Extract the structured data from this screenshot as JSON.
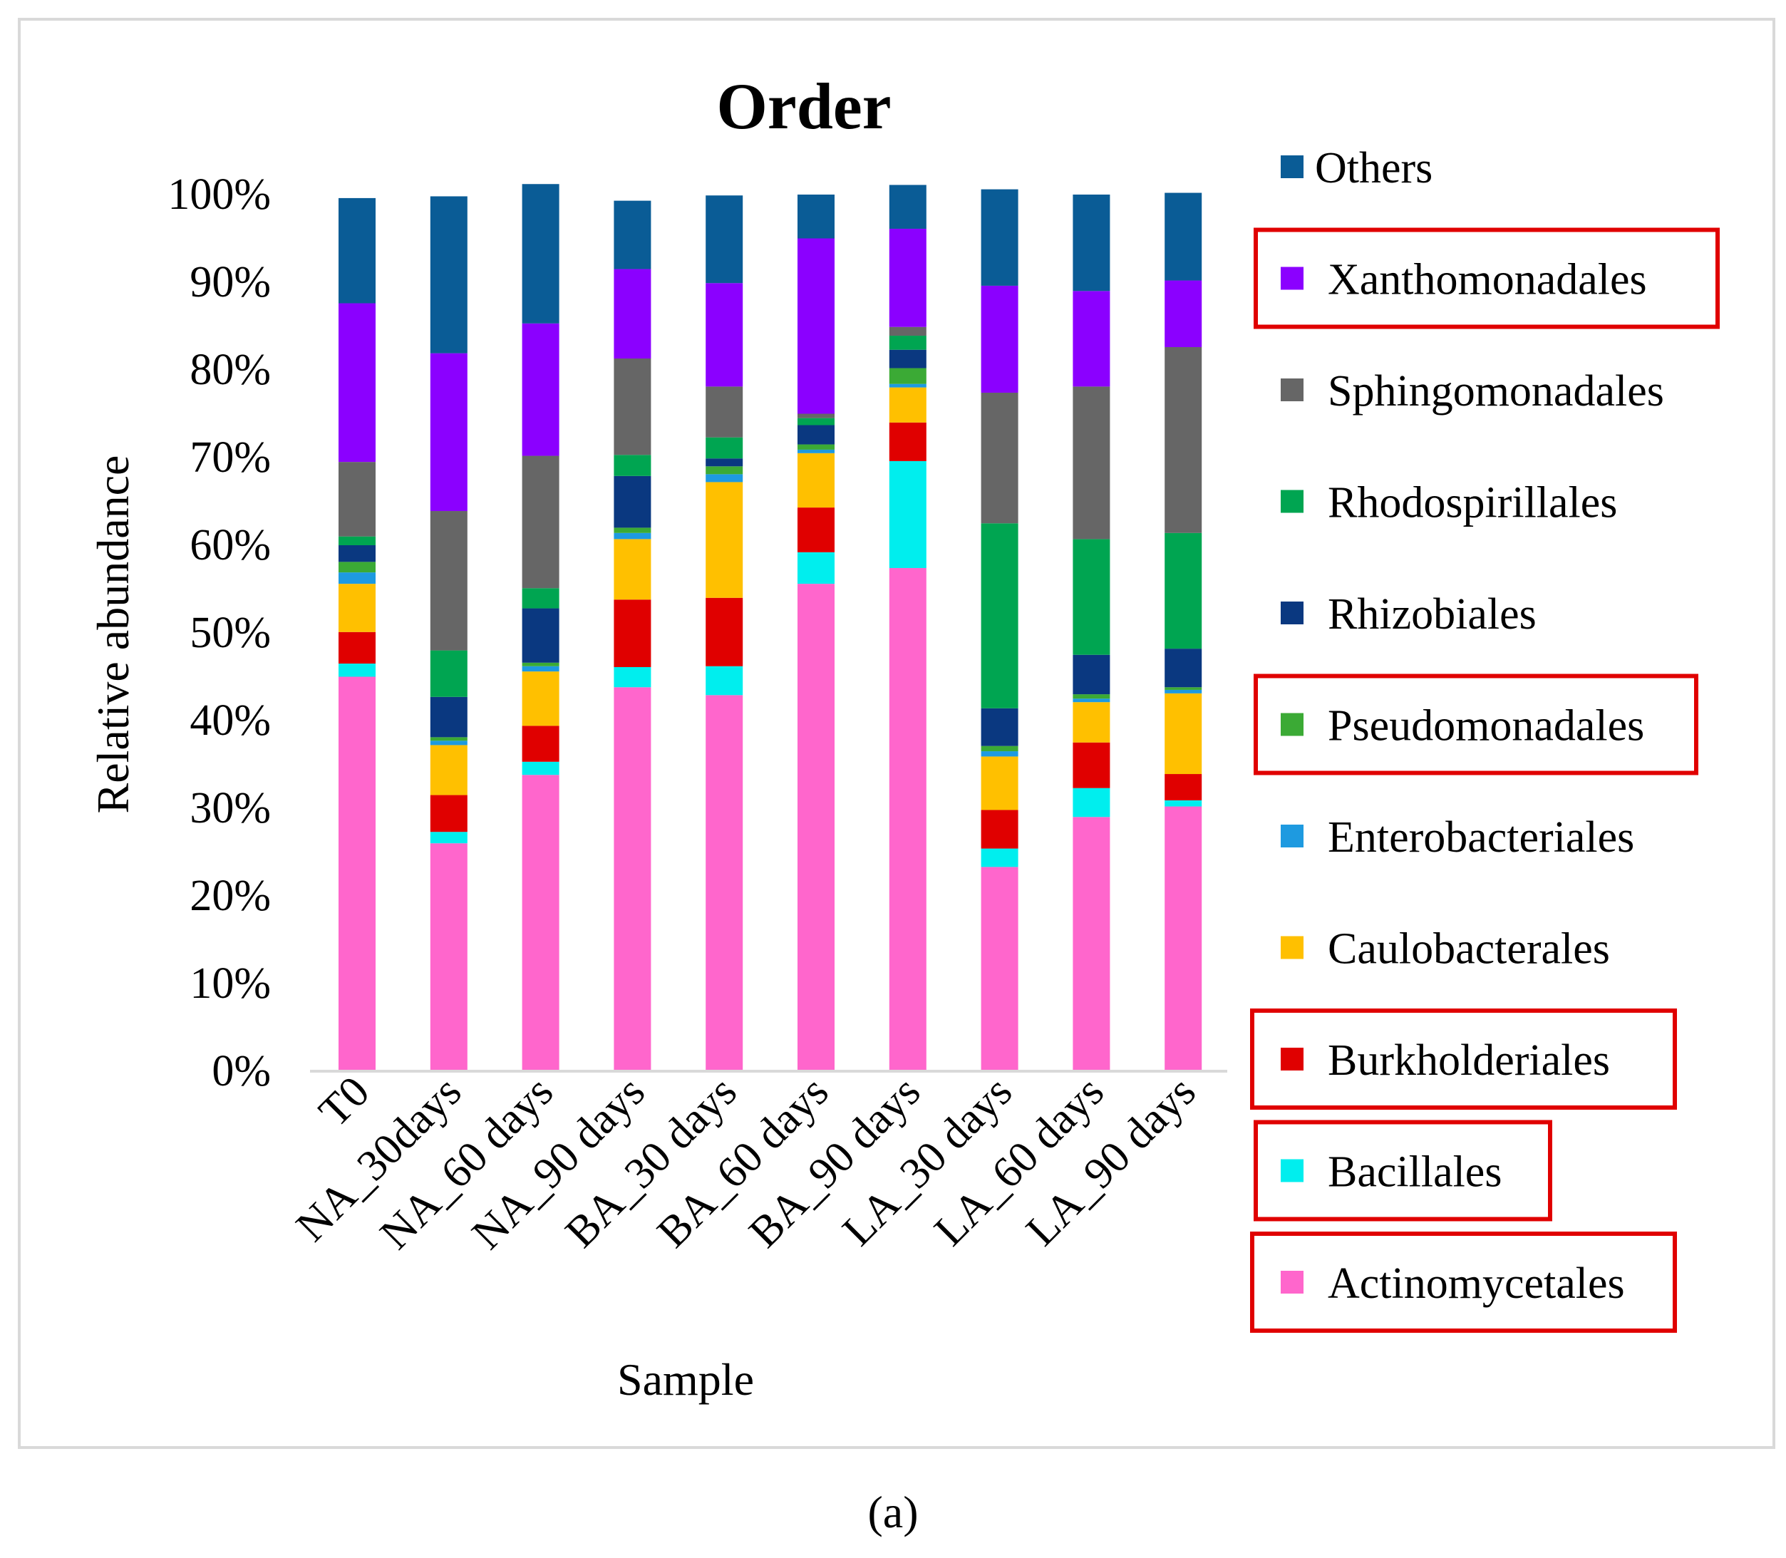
{
  "chart_data": {
    "type": "bar",
    "stacked": true,
    "title": "Order",
    "xlabel": "Sample",
    "ylabel": "Relative abundance",
    "ylim": [
      0,
      100
    ],
    "y_ticks": [
      "0%",
      "10%",
      "20%",
      "30%",
      "40%",
      "50%",
      "60%",
      "70%",
      "80%",
      "90%",
      "100%"
    ],
    "categories": [
      "T0",
      "NA_30days",
      "NA_60 days",
      "NA_90 days",
      "BA_30 days",
      "BA_60 days",
      "BA_90 days",
      "LA_30 days",
      "LA_60 days",
      "LA_90 days"
    ],
    "series": [
      {
        "name": "Actinomycetales",
        "color": "#FF66CC",
        "values": [
          45.0,
          26.0,
          33.8,
          43.8,
          42.9,
          55.6,
          57.4,
          23.3,
          29.0,
          30.2
        ]
      },
      {
        "name": "Bacillales",
        "color": "#00EEEE",
        "values": [
          1.5,
          1.3,
          1.5,
          2.3,
          3.3,
          3.6,
          12.2,
          2.1,
          3.3,
          0.7
        ]
      },
      {
        "name": "Burkholderiales",
        "color": "#E00000",
        "values": [
          3.6,
          4.2,
          4.1,
          7.7,
          7.8,
          5.1,
          4.4,
          4.4,
          5.2,
          3.0
        ]
      },
      {
        "name": "Caulobacterales",
        "color": "#FFC000",
        "values": [
          5.5,
          5.7,
          6.2,
          6.9,
          13.2,
          6.2,
          4.0,
          6.1,
          4.6,
          9.2
        ]
      },
      {
        "name": "Enterobacteriales",
        "color": "#1E9AE0",
        "values": [
          1.3,
          0.5,
          0.6,
          0.7,
          0.9,
          0.4,
          0.4,
          0.6,
          0.4,
          0.4
        ]
      },
      {
        "name": "Pseudomonadales",
        "color": "#3BAA35",
        "values": [
          1.2,
          0.4,
          0.4,
          0.6,
          0.9,
          0.6,
          1.8,
          0.6,
          0.5,
          0.3
        ]
      },
      {
        "name": "Rhizobiales",
        "color": "#0A3880",
        "values": [
          1.9,
          4.6,
          6.2,
          5.9,
          0.9,
          2.2,
          2.1,
          4.3,
          4.5,
          4.4
        ]
      },
      {
        "name": "Rhodospirillales",
        "color": "#00A551",
        "values": [
          1.0,
          5.3,
          2.3,
          2.4,
          2.4,
          0.8,
          1.6,
          21.1,
          13.2,
          13.2
        ]
      },
      {
        "name": "Sphingomonadales",
        "color": "#666666",
        "values": [
          8.5,
          15.9,
          15.1,
          11.0,
          5.8,
          0.5,
          1.0,
          14.9,
          17.4,
          21.2
        ]
      },
      {
        "name": "Xanthomonadales",
        "color": "#8B00FF",
        "values": [
          18.1,
          18.0,
          15.1,
          10.2,
          11.8,
          20.0,
          11.2,
          12.2,
          10.9,
          7.6
        ]
      },
      {
        "name": "Others",
        "color": "#0A5C96",
        "values": [
          12.0,
          17.9,
          15.9,
          7.8,
          10.0,
          5.0,
          5.0,
          11.0,
          11.0,
          10.0
        ]
      }
    ],
    "legend_order": [
      "Others",
      "Xanthomonadales",
      "Sphingomonadales",
      "Rhodospirillales",
      "Rhizobiales",
      "Pseudomonadales",
      "Enterobacteriales",
      "Caulobacterales",
      "Burkholderiales",
      "Bacillales",
      "Actinomycetales"
    ],
    "legend_highlighted": [
      "Xanthomonadales",
      "Pseudomonadales",
      "Burkholderiales",
      "Bacillales",
      "Actinomycetales"
    ],
    "legend_position": "right",
    "grid": false
  },
  "caption": "(a)",
  "colors": {
    "frame": "#D9D9D9",
    "axis": "#D9D9D9",
    "highlight_box": "#E00000"
  }
}
